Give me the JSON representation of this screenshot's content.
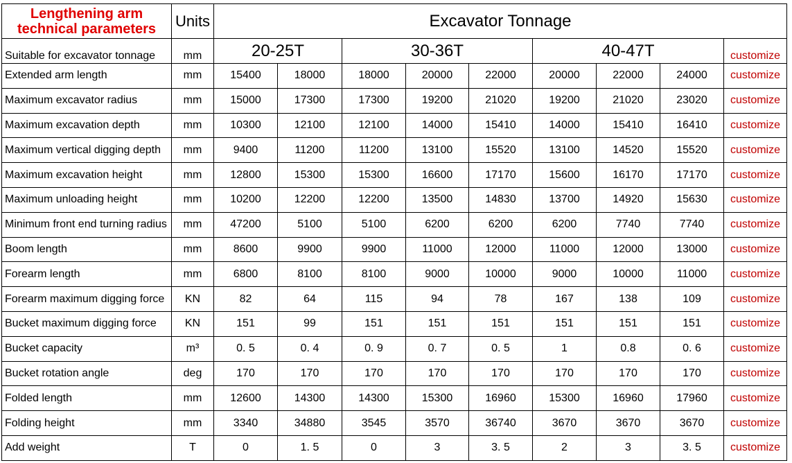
{
  "table": {
    "title_lines": [
      "Lengthening arm",
      "technical parameters"
    ],
    "units_header": "Units",
    "group_header": "Excavator Tonnage",
    "tonnage_row": {
      "label": "Suitable for excavator tonnage",
      "unit": "mm",
      "groups": [
        {
          "label": "20-25T",
          "span": 2
        },
        {
          "label": "30-36T",
          "span": 3
        },
        {
          "label": "40-47T",
          "span": 3
        }
      ],
      "customize": "customize"
    },
    "rows": [
      {
        "label": "Extended arm length",
        "unit": "mm",
        "values": [
          "15400",
          "18000",
          "18000",
          "20000",
          "22000",
          "20000",
          "22000",
          "24000"
        ],
        "customize": "customize"
      },
      {
        "label": "Maximum excavator radius",
        "unit": "mm",
        "values": [
          "15000",
          "17300",
          "17300",
          "19200",
          "21020",
          "19200",
          "21020",
          "23020"
        ],
        "customize": "customize"
      },
      {
        "label": "Maximum excavation depth",
        "unit": "mm",
        "values": [
          "10300",
          "12100",
          "12100",
          "14000",
          "15410",
          "14000",
          "15410",
          "16410"
        ],
        "customize": "customize"
      },
      {
        "label": "Maximum vertical digging depth",
        "unit": "mm",
        "values": [
          "9400",
          "11200",
          "11200",
          "13100",
          "15520",
          "13100",
          "14520",
          "15520"
        ],
        "customize": "customize"
      },
      {
        "label": "Maximum excavation height",
        "unit": "mm",
        "values": [
          "12800",
          "15300",
          "15300",
          "16600",
          "17170",
          "15600",
          "16170",
          "17170"
        ],
        "customize": "customize"
      },
      {
        "label": "Maximum unloading height",
        "unit": "mm",
        "values": [
          "10200",
          "12200",
          "12200",
          "13500",
          "14830",
          "13700",
          "14920",
          "15630"
        ],
        "customize": "customize"
      },
      {
        "label": "Minimum front end turning radius",
        "unit": "mm",
        "values": [
          "47200",
          "5100",
          "5100",
          "6200",
          "6200",
          "6200",
          "7740",
          "7740"
        ],
        "customize": "customize"
      },
      {
        "label": "Boom length",
        "unit": "mm",
        "values": [
          "8600",
          "9900",
          "9900",
          "11000",
          "12000",
          "11000",
          "12000",
          "13000"
        ],
        "customize": "customize"
      },
      {
        "label": "Forearm length",
        "unit": "mm",
        "values": [
          "6800",
          "8100",
          "8100",
          "9000",
          "10000",
          "9000",
          "10000",
          "11000"
        ],
        "customize": "customize"
      },
      {
        "label": "Forearm maximum digging force",
        "unit": "KN",
        "values": [
          "82",
          "64",
          "115",
          "94",
          "78",
          "167",
          "138",
          "109"
        ],
        "customize": "customize"
      },
      {
        "label": "Bucket maximum digging force",
        "unit": "KN",
        "values": [
          "151",
          "99",
          "151",
          "151",
          "151",
          "151",
          "151",
          "151"
        ],
        "customize": "customize"
      },
      {
        "label": "Bucket capacity",
        "unit": "m³",
        "values": [
          "0. 5",
          "0. 4",
          "0. 9",
          "0. 7",
          "0. 5",
          "1",
          "0.8",
          "0. 6"
        ],
        "customize": "customize"
      },
      {
        "label": "Bucket rotation angle",
        "unit": "deg",
        "values": [
          "170",
          "170",
          "170",
          "170",
          "170",
          "170",
          "170",
          "170"
        ],
        "customize": "customize"
      },
      {
        "label": "Folded length",
        "unit": "mm",
        "values": [
          "12600",
          "14300",
          "14300",
          "15300",
          "16960",
          "15300",
          "16960",
          "17960"
        ],
        "customize": "customize"
      },
      {
        "label": "Folding height",
        "unit": "mm",
        "values": [
          "3340",
          "34880",
          "3545",
          "3570",
          "36740",
          "3670",
          "3670",
          "3670"
        ],
        "customize": "customize"
      },
      {
        "label": "Add weight",
        "unit": "T",
        "values": [
          "0",
          "1. 5",
          "0",
          "3",
          "3. 5",
          "2",
          "3",
          "3. 5"
        ],
        "customize": "customize"
      }
    ]
  }
}
